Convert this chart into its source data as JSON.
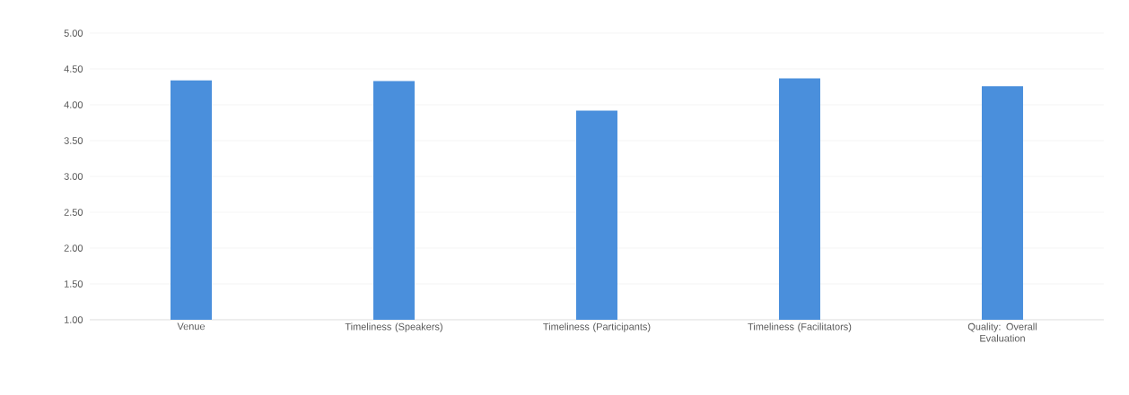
{
  "chart_data": {
    "type": "bar",
    "categories": [
      "Venue",
      "Timeliness (Speakers)",
      "Timeliness (Participants)",
      "Timeliness (Facilitators)",
      "Quality: Overall Evaluation"
    ],
    "values": [
      4.34,
      4.33,
      3.92,
      4.37,
      4.26
    ],
    "color": "#4a8fdc",
    "ylim": [
      1,
      5
    ],
    "yticks": [
      {
        "value": 1,
        "label": "1.00"
      },
      {
        "value": 1.5,
        "label": "1.50"
      },
      {
        "value": 2,
        "label": "2.00"
      },
      {
        "value": 2.5,
        "label": "2.50"
      },
      {
        "value": 3,
        "label": "3.00"
      },
      {
        "value": 3.5,
        "label": "3.50"
      },
      {
        "value": 4,
        "label": "4.00"
      },
      {
        "value": 4.5,
        "label": "4.50"
      },
      {
        "value": 5,
        "label": "5.00"
      }
    ],
    "grid": "y"
  }
}
